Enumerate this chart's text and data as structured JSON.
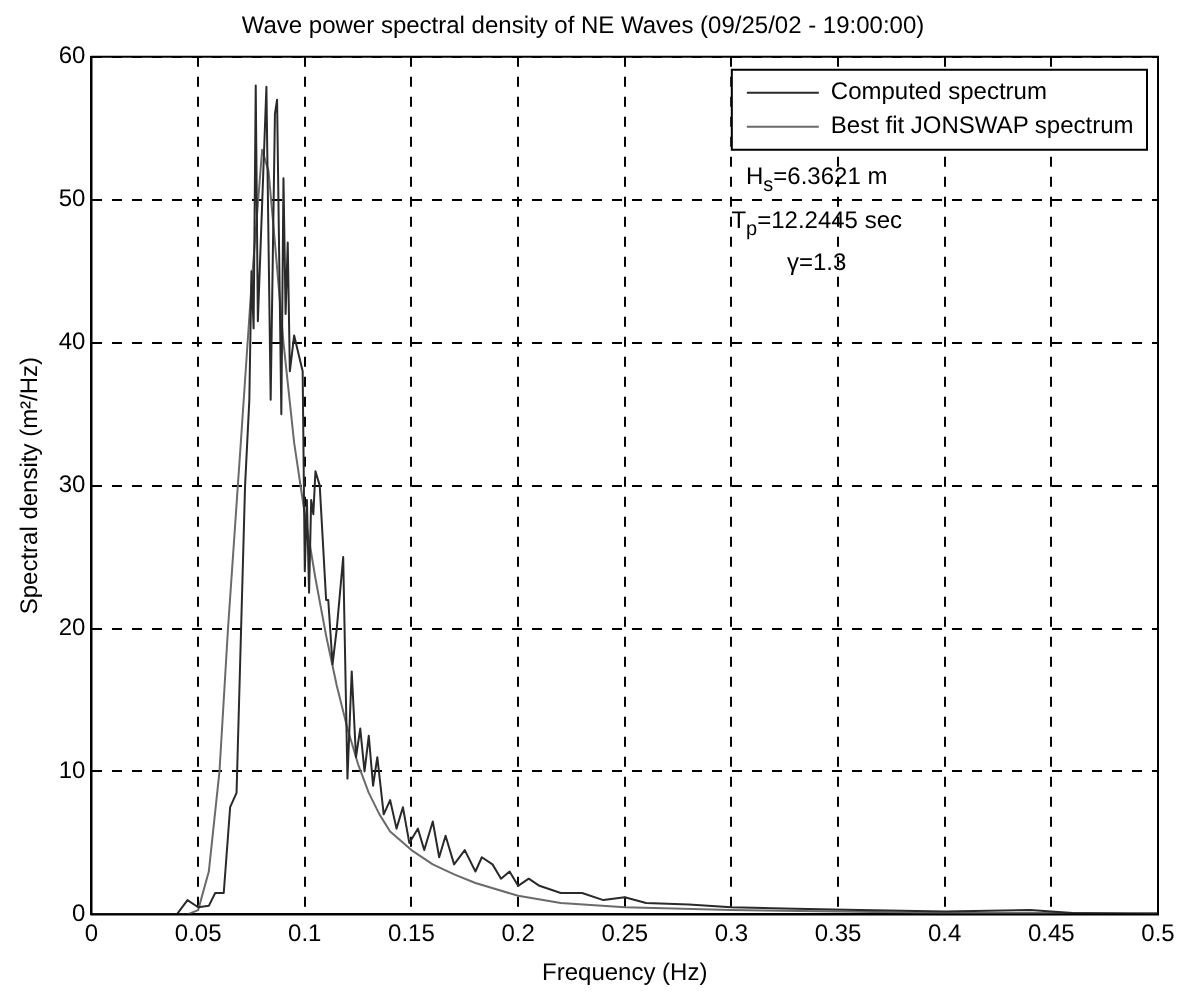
{
  "chart_data": {
    "type": "line",
    "title": "Wave power spectral density of NE Waves (09/25/02 - 19:00:00)",
    "xlabel": "Frequency (Hz)",
    "ylabel": "Spectral density (m²/Hz)",
    "xlim": [
      0,
      0.5
    ],
    "xticks": [
      {
        "value": 0,
        "label": "0"
      },
      0.05,
      0.1,
      0.15,
      0.2,
      0.25,
      0.3,
      0.35,
      0.4,
      0.45,
      0.5
    ],
    "ylim": [
      0,
      60
    ],
    "yticks": [
      0,
      10,
      20,
      30,
      40,
      50,
      60
    ],
    "grid": true,
    "legend": "top right",
    "marker": "none",
    "line_style": "solid",
    "annotations": [
      "H$_{s}$=6.3621 m",
      "T$_{p}$=12.2445 sec",
      "γ=1.3"
    ],
    "series": [
      {
        "name": "Computed spectrum",
        "color": "#2a2a2a",
        "x": [
          0,
          0.04,
          0.045,
          0.05,
          0.055,
          0.058,
          0.062,
          0.065,
          0.068,
          0.072,
          0.074,
          0.075,
          0.076,
          0.077,
          0.078,
          0.082,
          0.084,
          0.086,
          0.087,
          0.089,
          0.09,
          0.091,
          0.092,
          0.093,
          0.095,
          0.099,
          0.1,
          0.101,
          0.102,
          0.103,
          0.104,
          0.105,
          0.107,
          0.11,
          0.111,
          0.113,
          0.115,
          0.118,
          0.12,
          0.122,
          0.124,
          0.126,
          0.128,
          0.13,
          0.132,
          0.134,
          0.137,
          0.14,
          0.143,
          0.146,
          0.149,
          0.153,
          0.156,
          0.16,
          0.163,
          0.166,
          0.17,
          0.175,
          0.18,
          0.183,
          0.188,
          0.192,
          0.196,
          0.2,
          0.205,
          0.21,
          0.22,
          0.23,
          0.24,
          0.25,
          0.26,
          0.28,
          0.3,
          0.33,
          0.36,
          0.4,
          0.44,
          0.46,
          0.5
        ],
        "values": [
          0,
          0,
          1,
          0.5,
          0.6,
          1.5,
          1.5,
          7.5,
          8.5,
          30,
          36,
          45,
          41,
          58,
          41.5,
          57.9,
          36,
          56,
          57,
          35,
          51.5,
          42,
          47,
          38,
          40.5,
          38,
          24,
          29,
          22.5,
          29,
          28,
          31,
          30,
          22,
          22,
          17.5,
          20,
          25,
          9.5,
          17,
          11,
          13,
          10,
          12.5,
          9,
          11,
          7,
          8,
          6,
          7.5,
          5,
          6,
          4.5,
          6.5,
          4,
          5.5,
          3.5,
          4.5,
          3,
          4,
          3.5,
          2.5,
          3,
          2,
          2.5,
          2,
          1.5,
          1.5,
          1,
          1.2,
          0.8,
          0.7,
          0.5,
          0.4,
          0.3,
          0.2,
          0.3,
          0.1,
          0
        ]
      },
      {
        "name": "Best fit JONSWAP spectrum",
        "color": "#6a6a6a",
        "x": [
          0,
          0.045,
          0.05,
          0.055,
          0.06,
          0.064,
          0.07,
          0.075,
          0.08,
          0.083,
          0.086,
          0.09,
          0.095,
          0.1,
          0.105,
          0.11,
          0.115,
          0.12,
          0.125,
          0.13,
          0.135,
          0.14,
          0.15,
          0.16,
          0.17,
          0.18,
          0.2,
          0.22,
          0.25,
          0.3,
          0.35,
          0.4,
          0.5
        ],
        "values": [
          0,
          0,
          0.3,
          3,
          10,
          20,
          33,
          44,
          53.5,
          52,
          47,
          40,
          33,
          28,
          23.5,
          19.5,
          16,
          13,
          10.5,
          8.5,
          7,
          5.8,
          4.5,
          3.5,
          2.8,
          2.2,
          1.3,
          0.8,
          0.5,
          0.3,
          0.2,
          0.1,
          0.1
        ]
      }
    ]
  }
}
